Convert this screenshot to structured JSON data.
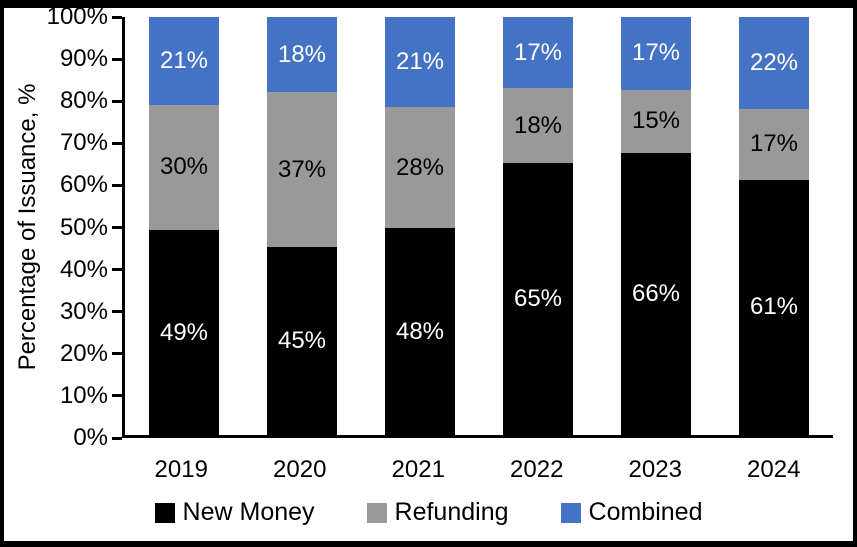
{
  "chart_data": {
    "type": "bar",
    "stacked": true,
    "title": "",
    "xlabel": "",
    "ylabel": "Percentage of Issuance, %",
    "ylim": [
      0,
      100
    ],
    "ytick_labels": [
      "0%",
      "10%",
      "20%",
      "30%",
      "40%",
      "50%",
      "60%",
      "70%",
      "80%",
      "90%",
      "100%"
    ],
    "categories": [
      "2019",
      "2020",
      "2021",
      "2022",
      "2023",
      "2024"
    ],
    "series": [
      {
        "name": "New Money",
        "color": "#000000",
        "label_color": "#ffffff",
        "values": [
          49,
          45,
          48,
          65,
          66,
          61
        ]
      },
      {
        "name": "Refunding",
        "color": "#999999",
        "label_color": "#000000",
        "values": [
          30,
          37,
          28,
          18,
          15,
          17
        ]
      },
      {
        "name": "Combined",
        "color": "#4472C4",
        "label_color": "#ffffff",
        "values": [
          21,
          18,
          21,
          17,
          17,
          22
        ]
      }
    ],
    "value_suffix": "%",
    "legend_position": "bottom",
    "grid": false
  }
}
